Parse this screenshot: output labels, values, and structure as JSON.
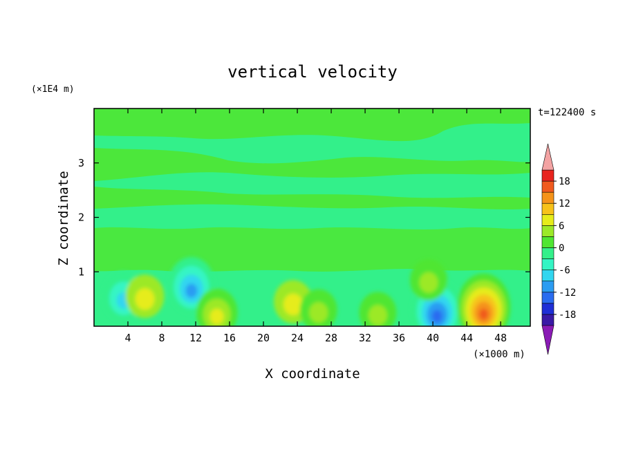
{
  "chart_data": {
    "type": "heatmap",
    "title": "vertical velocity",
    "xlabel": "X coordinate",
    "ylabel": "Z coordinate",
    "x_unit": "(×1000 m)",
    "y_unit": "(×1E4 m)",
    "time_label": "t=122400 s",
    "xlim": [
      0,
      51.5
    ],
    "ylim": [
      0,
      4
    ],
    "x_ticks": [
      "4",
      "8",
      "12",
      "16",
      "20",
      "24",
      "28",
      "32",
      "36",
      "40",
      "44",
      "48"
    ],
    "y_ticks": [
      "1",
      "2",
      "3"
    ],
    "colorbar": {
      "labels": [
        "18",
        "12",
        "6",
        "0",
        "-6",
        "-12",
        "-18"
      ],
      "levels": [
        -21,
        -18,
        -15,
        -12,
        -9,
        -6,
        -3,
        0,
        3,
        6,
        9,
        12,
        15,
        18,
        21
      ],
      "colors": [
        "#8a1bb5",
        "#3a1aa6",
        "#1f2fd6",
        "#2a6cf0",
        "#2b9cf2",
        "#31d6f0",
        "#34f5c4",
        "#33f08a",
        "#4fe632",
        "#9ce928",
        "#e6ec1a",
        "#f7c21a",
        "#f5931a",
        "#f05a1e",
        "#e8231e",
        "#f3a3a3"
      ]
    },
    "features": [
      {
        "x": 3.5,
        "z": 0.55,
        "value": -9
      },
      {
        "x": 6.0,
        "z": 0.55,
        "value": 6
      },
      {
        "x": 11.5,
        "z": 0.75,
        "value": -12
      },
      {
        "x": 14.5,
        "z": 0.25,
        "value": 8
      },
      {
        "x": 23.5,
        "z": 0.45,
        "value": 6
      },
      {
        "x": 26.5,
        "z": 0.3,
        "value": 5
      },
      {
        "x": 33.5,
        "z": 0.25,
        "value": 5
      },
      {
        "x": 40.5,
        "z": 0.3,
        "value": -15
      },
      {
        "x": 39.5,
        "z": 0.85,
        "value": 5
      },
      {
        "x": 46.0,
        "z": 0.35,
        "value": 17
      }
    ]
  }
}
